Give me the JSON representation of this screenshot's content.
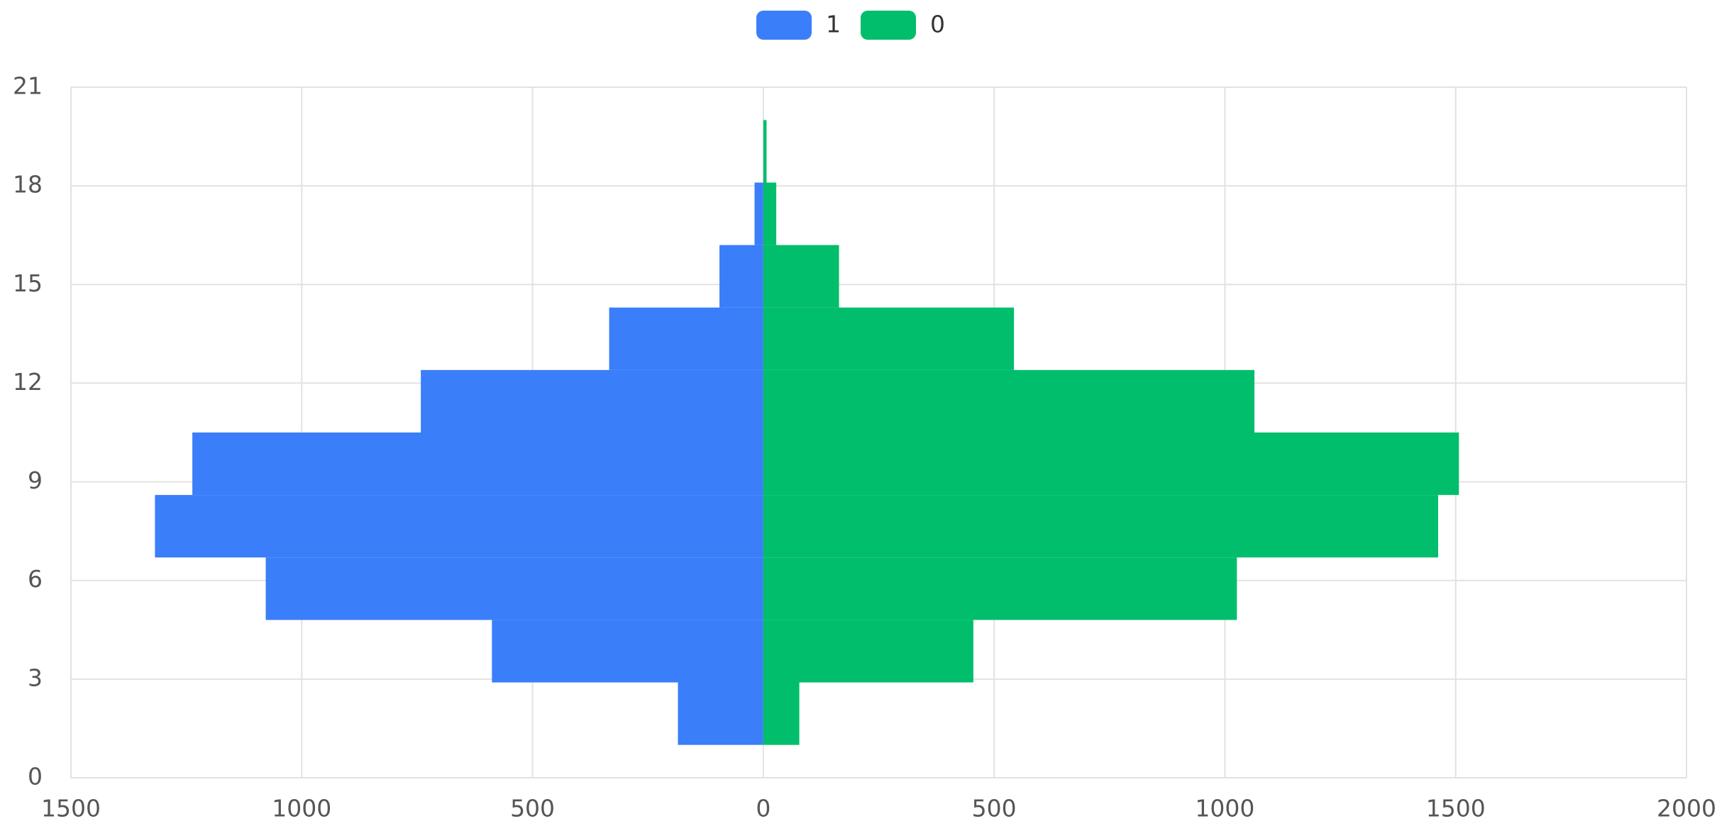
{
  "chart_data": {
    "type": "histogram",
    "orientation": "horizontal",
    "bins": [
      1,
      2.9,
      4.8,
      6.7,
      8.6,
      10.5,
      12.4,
      14.3,
      16.2,
      18.1,
      20
    ],
    "series": [
      {
        "name": "1",
        "color": "#3a7ef9",
        "values": [
          -185,
          -588,
          -1078,
          -1318,
          -1237,
          -742,
          -334,
          -95,
          -19,
          0
        ]
      },
      {
        "name": "0",
        "color": "#00be6b",
        "values": [
          78,
          455,
          1026,
          1462,
          1507,
          1064,
          543,
          164,
          28,
          7
        ]
      }
    ],
    "xlim": [
      -1500,
      2000
    ],
    "xticks": [
      {
        "value": -1500,
        "label": "1500"
      },
      {
        "value": -1000,
        "label": "1000"
      },
      {
        "value": -500,
        "label": "500"
      },
      0,
      500,
      1000,
      1500,
      2000
    ],
    "ylim": [
      0,
      21
    ],
    "yticks": [
      0,
      3,
      6,
      9,
      12,
      15,
      18,
      21
    ],
    "grid": true,
    "legend": "top"
  }
}
